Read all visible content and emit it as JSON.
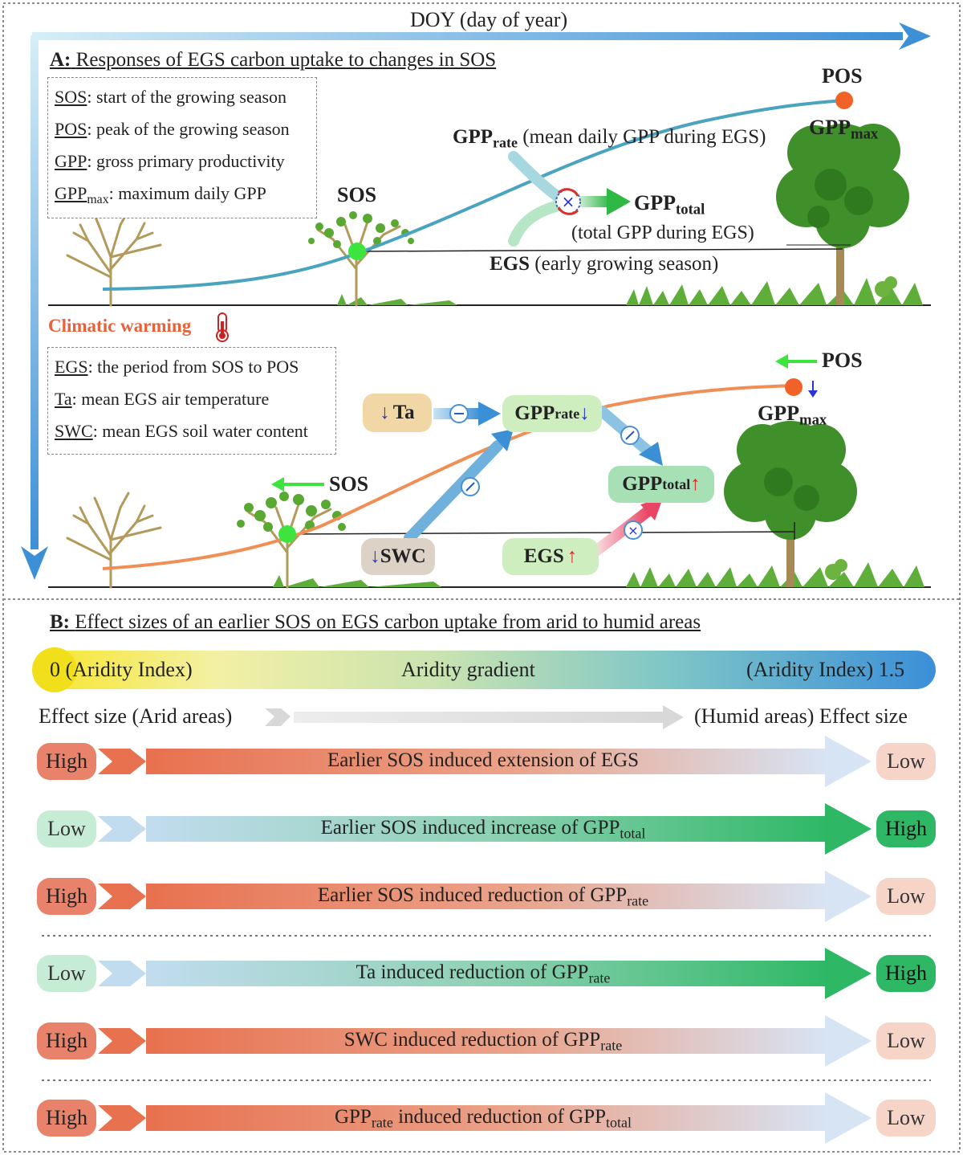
{
  "top_axis_label": "DOY (day of year)",
  "panel_a": {
    "prefix": "A:",
    "title": "Responses of EGS carbon uptake to changes in SOS",
    "legend1": [
      {
        "term": "SOS",
        "desc": ": start of the growing season"
      },
      {
        "term": "POS",
        "desc": ": peak of the growing season"
      },
      {
        "term": "GPP",
        "desc": ": gross primary productivity"
      },
      {
        "term": "GPP",
        "term_sub": "max",
        "desc": ": maximum daily GPP"
      }
    ],
    "sos_label": "SOS",
    "pos_label": "POS",
    "gppmax_main": "GPP",
    "gppmax_sub": "max",
    "gpprate_main": "GPP",
    "gpprate_sub": "rate",
    "gpprate_desc": "(mean daily GPP during EGS)",
    "gpptotal_main": "GPP",
    "gpptotal_sub": "total",
    "gpptotal_desc": "(total GPP during EGS)",
    "egs_main": "EGS",
    "egs_desc": "(early growing season)",
    "climatic_warming": "Climatic warming",
    "legend2": [
      {
        "term": "EGS",
        "desc": ": the period from SOS to POS"
      },
      {
        "term": "Ta",
        "desc": ": mean EGS air temperature"
      },
      {
        "term": "SWC",
        "desc": ": mean EGS soil water content"
      }
    ],
    "warm_sos": "SOS",
    "warm_pos": "POS",
    "ta_box": "Ta",
    "swc_box": "SWC",
    "egs_box": "EGS",
    "rate_box_main": "GPP",
    "rate_box_sub": "rate",
    "total_box_main": "GPP",
    "total_box_sub": "total",
    "warm_gppmax_main": "GPP",
    "warm_gppmax_sub": "max",
    "minus_sign": "−",
    "times_sign": "×"
  },
  "panel_b": {
    "prefix": "B:",
    "title": "Effect sizes of an earlier SOS on EGS carbon uptake from arid to humid areas",
    "gradient_left": "0 (Aridity Index)",
    "gradient_center": "Aridity gradient",
    "gradient_right": "(Aridity Index) 1.5",
    "effect_left": "Effect size (Arid areas)",
    "effect_right": "(Humid areas) Effect size",
    "rows": [
      {
        "left": "High",
        "right": "Low",
        "text": "Earlier SOS induced extension of EGS",
        "sub": "",
        "tail": "",
        "pre_sub": "",
        "trend": "decrease"
      },
      {
        "left": "Low",
        "right": "High",
        "text": "Earlier SOS induced increase of GPP",
        "sub": "total",
        "tail": "",
        "pre_sub": "",
        "trend": "increase"
      },
      {
        "left": "High",
        "right": "Low",
        "text": "Earlier SOS induced reduction of GPP",
        "sub": "rate",
        "tail": "",
        "pre_sub": "",
        "trend": "decrease"
      },
      {
        "left": "Low",
        "right": "High",
        "text": "Ta induced reduction of GPP",
        "sub": "rate",
        "tail": "",
        "pre_sub": "",
        "trend": "increase"
      },
      {
        "left": "High",
        "right": "Low",
        "text": "SWC induced reduction of GPP",
        "sub": "rate",
        "tail": "",
        "pre_sub": "",
        "trend": "decrease"
      },
      {
        "left": "High",
        "right": "Low",
        "text": " induced reduction of GPP",
        "sub": "total",
        "tail": "",
        "pre_main": "GPP",
        "pre_sub": "rate",
        "trend": "decrease"
      }
    ]
  },
  "colors": {
    "blue_axis": "#3d8fd6",
    "curve_top": "#4aa3bf",
    "curve_bottom": "#ef8f55",
    "orange_label": "#e8613a",
    "red_bar": "#e8826a",
    "green_bar": "#2eb866",
    "pos_dot": "#f06228",
    "sos_dot": "#3ee43e"
  }
}
